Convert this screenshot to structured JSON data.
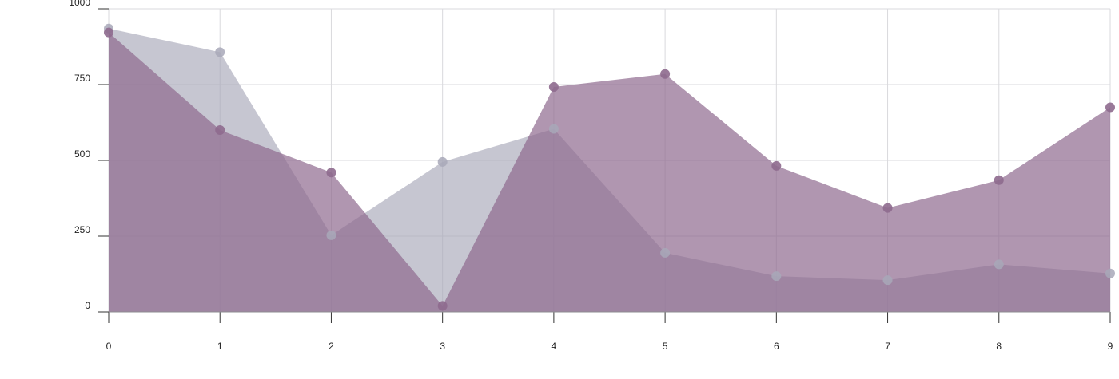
{
  "chart_data": {
    "type": "area",
    "x": [
      0,
      1,
      2,
      3,
      4,
      5,
      6,
      7,
      8,
      9
    ],
    "x_tick_labels": [
      "0",
      "1",
      "2",
      "3",
      "4",
      "5",
      "6",
      "7",
      "8",
      "9"
    ],
    "ylim": [
      0,
      1000
    ],
    "y_ticks": [
      0,
      250,
      500,
      750,
      1000
    ],
    "y_tick_labels": [
      "0",
      "250",
      "500",
      "750",
      "1000"
    ],
    "grid": true,
    "legend": "none",
    "title": "",
    "xlabel": "",
    "ylabel": "",
    "series": [
      {
        "values": [
          935,
          857,
          253,
          495,
          604,
          195,
          118,
          105,
          157,
          127
        ],
        "color": "#a8a8b8",
        "opacity": 0.65
      },
      {
        "values": [
          922,
          600,
          460,
          20,
          742,
          785,
          482,
          343,
          435,
          675
        ],
        "color": "#8e6a8e",
        "opacity": 0.7
      }
    ]
  }
}
